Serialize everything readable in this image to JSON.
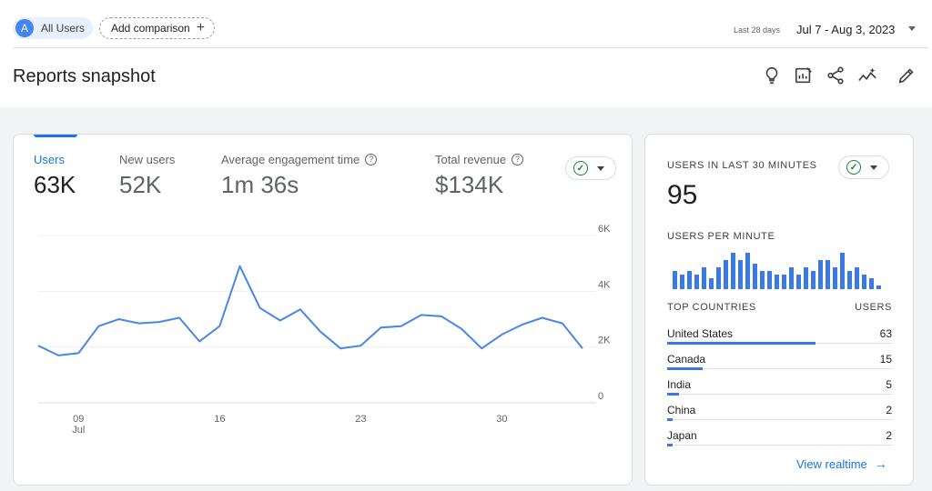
{
  "topbar": {
    "segment_initial": "A",
    "segment_label": "All Users",
    "add_comparison_label": "Add comparison",
    "add_icon": "plus-icon",
    "date_range_hint": "Last 28 days",
    "date_range": "Jul 7 - Aug 3, 2023"
  },
  "header": {
    "title": "Reports snapshot",
    "tools": [
      "lightbulb-icon",
      "customize-report-icon",
      "share-icon",
      "insights-icon",
      "edit-icon"
    ]
  },
  "main_card": {
    "metrics": [
      {
        "label": "Users",
        "value": "63K",
        "help": false
      },
      {
        "label": "New users",
        "value": "52K",
        "help": false
      },
      {
        "label": "Average engagement time",
        "value": "1m 36s",
        "help": true
      },
      {
        "label": "Total revenue",
        "value": "$134K",
        "help": true
      }
    ],
    "help_glyph": "?",
    "status_icon": "check-circle-icon",
    "accent_color": "#1a73e8",
    "line_color": "#4a86e8"
  },
  "chart_data": {
    "type": "line",
    "x": [
      "Jul 7",
      "Jul 8",
      "Jul 9",
      "Jul 10",
      "Jul 11",
      "Jul 12",
      "Jul 13",
      "Jul 14",
      "Jul 15",
      "Jul 16",
      "Jul 17",
      "Jul 18",
      "Jul 19",
      "Jul 20",
      "Jul 21",
      "Jul 22",
      "Jul 23",
      "Jul 24",
      "Jul 25",
      "Jul 26",
      "Jul 27",
      "Jul 28",
      "Jul 29",
      "Jul 30",
      "Jul 31",
      "Aug 1",
      "Aug 2",
      "Aug 3"
    ],
    "series": [
      {
        "values": [
          2050,
          1700,
          1780,
          2750,
          3000,
          2850,
          2900,
          3050,
          2200,
          2750,
          4900,
          3400,
          2950,
          3350,
          2550,
          1950,
          2050,
          2700,
          2750,
          3150,
          3100,
          2650,
          1950,
          2450,
          2800,
          3050,
          2850,
          1950
        ]
      }
    ],
    "x_tick_labels": [
      "09",
      "16",
      "23",
      "30"
    ],
    "x_month_label": "Jul",
    "y_tick_labels": [
      "6K",
      "4K",
      "2K",
      "0"
    ],
    "ylim": [
      0,
      6000
    ],
    "grid": true
  },
  "realtime": {
    "title": "USERS IN LAST 30 MINUTES",
    "value": "95",
    "per_minute_label": "USERS PER MINUTE",
    "per_minute": [
      5,
      4,
      5,
      4,
      6,
      3,
      6,
      8,
      10,
      8,
      10,
      7,
      5,
      5,
      4,
      4,
      6,
      4,
      6,
      5,
      8,
      8,
      6,
      10,
      5,
      6,
      4,
      3,
      1
    ],
    "countries_label": "TOP COUNTRIES",
    "users_label": "USERS",
    "countries": [
      {
        "name": "United States",
        "value": "63",
        "share": 1.0
      },
      {
        "name": "Canada",
        "value": "15",
        "share": 0.24
      },
      {
        "name": "India",
        "value": "5",
        "share": 0.08
      },
      {
        "name": "China",
        "value": "2",
        "share": 0.035
      },
      {
        "name": "Japan",
        "value": "2",
        "share": 0.035
      }
    ],
    "view_realtime_label": "View realtime",
    "arrow_glyph": "→"
  }
}
